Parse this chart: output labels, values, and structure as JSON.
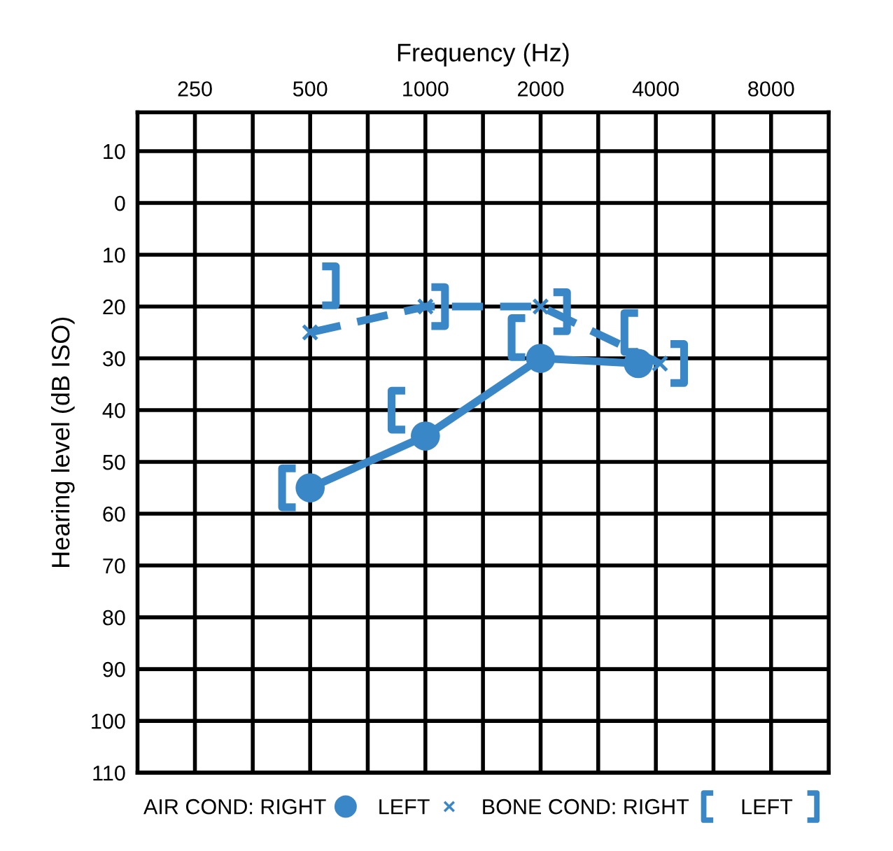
{
  "chart_data": {
    "type": "line",
    "xlabel": "Frequency (Hz)",
    "ylabel": "Hearing level (dB ISO)",
    "log": "x",
    "xlim": [
      177,
      11314
    ],
    "xticks": [
      250,
      {
        "value": 354,
        "label": null
      },
      500,
      {
        "value": 707,
        "label": null
      },
      1000,
      {
        "value": 1414,
        "label": null
      },
      2000,
      {
        "value": 2828,
        "label": null
      },
      4000,
      {
        "value": 5657,
        "label": null
      },
      8000
    ],
    "ylim": [
      110,
      -17.5
    ],
    "yticks": [
      {
        "value": -10,
        "label": "10"
      },
      0,
      10,
      20,
      30,
      40,
      50,
      60,
      70,
      80,
      90,
      100,
      110
    ],
    "grid": true,
    "legend": "bottom",
    "series": [
      {
        "name": "AIR COND: RIGHT",
        "color": "#3a87c8",
        "marker": "circle",
        "line_style": "solid",
        "x": [
          500,
          1000,
          2000,
          3600
        ],
        "values": [
          55,
          45,
          30,
          31
        ]
      },
      {
        "name": "LEFT",
        "color": "#3a87c8",
        "marker": "cross",
        "line_style": "dashed",
        "x": [
          500,
          1000,
          2000,
          4100
        ],
        "values": [
          25,
          20,
          20,
          31
        ]
      },
      {
        "name": "BONE COND: RIGHT",
        "color": "#3a87c8",
        "type": "scatter",
        "x": [
          440,
          850,
          1750,
          3450
        ],
        "values": [
          55,
          40,
          26,
          25
        ]
      },
      {
        "name": "LEFT",
        "color": "#3a87c8",
        "type": "scatter",
        "x": [
          560,
          1080,
          2250,
          4550
        ],
        "values": [
          16,
          20,
          21,
          31
        ]
      }
    ]
  }
}
